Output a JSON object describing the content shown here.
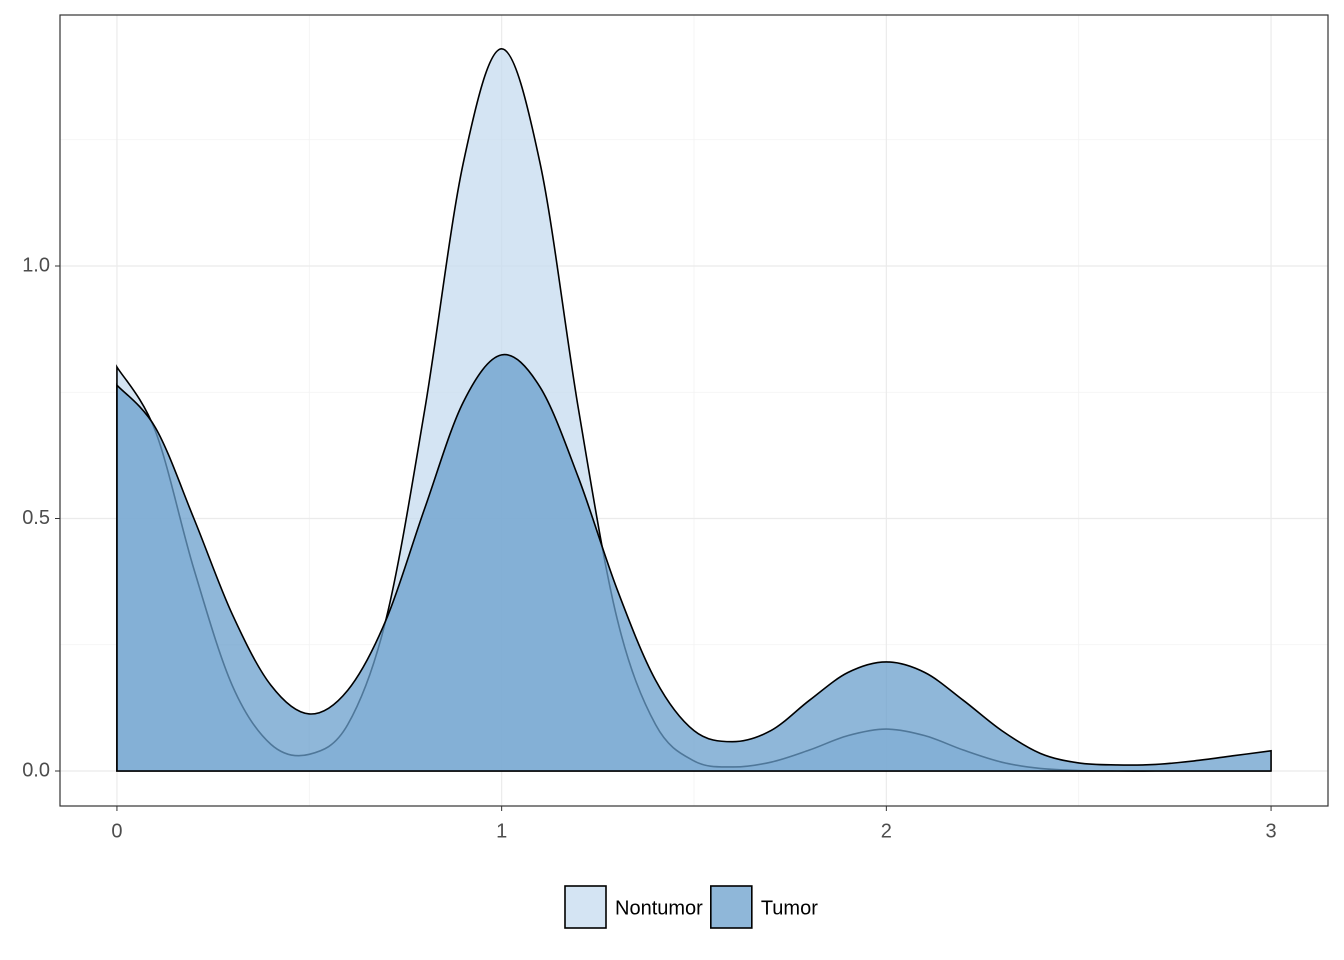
{
  "chart_data": {
    "type": "density",
    "x": [
      0,
      0.1,
      0.2,
      0.3,
      0.4,
      0.5,
      0.6,
      0.7,
      0.8,
      0.9,
      1.0,
      1.1,
      1.2,
      1.3,
      1.4,
      1.5,
      1.6,
      1.7,
      1.8,
      1.9,
      2.0,
      2.1,
      2.2,
      2.3,
      2.4,
      2.5,
      2.6,
      2.7,
      2.8,
      2.9,
      3.0
    ],
    "series": [
      {
        "name": "Nontumor",
        "color": "#c6dbef",
        "values": [
          0.8,
          0.673,
          0.4,
          0.169,
          0.053,
          0.033,
          0.092,
          0.302,
          0.715,
          1.203,
          1.43,
          1.203,
          0.715,
          0.302,
          0.092,
          0.02,
          0.008,
          0.0175,
          0.0415,
          0.07,
          0.083,
          0.07,
          0.0415,
          0.0175,
          0.005,
          0.001,
          0,
          0,
          0,
          0,
          0
        ]
      },
      {
        "name": "Tumor",
        "color": "#6a9fcc",
        "values": [
          0.764,
          0.68,
          0.5,
          0.31,
          0.17,
          0.113,
          0.16,
          0.3,
          0.52,
          0.73,
          0.824,
          0.76,
          0.58,
          0.36,
          0.18,
          0.08,
          0.058,
          0.08,
          0.14,
          0.195,
          0.216,
          0.195,
          0.14,
          0.08,
          0.035,
          0.016,
          0.012,
          0.013,
          0.02,
          0.03,
          0.04
        ]
      }
    ],
    "xlim": [
      -0.148,
      3.148
    ],
    "xticks": [
      0,
      1,
      2,
      3
    ],
    "ylim": [
      -0.0693,
      1.497
    ],
    "yticks": [
      {
        "value": 0,
        "label": "0.0"
      },
      {
        "value": 0.5,
        "label": "0.5"
      },
      {
        "value": 1,
        "label": "1.0"
      }
    ],
    "grid": true,
    "legend": "bottom"
  }
}
